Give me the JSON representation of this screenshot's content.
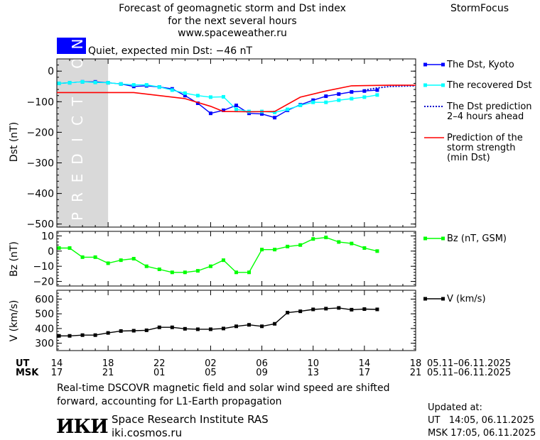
{
  "header": {
    "title_line1": "Forecast of geomagnetic storm and Dst index",
    "title_line2": "for the next several hours",
    "site": "www.spaceweather.ru",
    "brand": "StormFocus"
  },
  "status": {
    "text": "Quiet, expected min Dst: −46 nT",
    "color": "#0000ff"
  },
  "prediction_band": {
    "label": "PREDICTION",
    "start_hour": 14,
    "end_hour": 18,
    "color": "#d9d9d9"
  },
  "chart_data": [
    {
      "id": "dst",
      "type": "line",
      "ylabel": "Dst (nT)",
      "ylim": [
        -510,
        40
      ],
      "yticks": [
        0,
        -100,
        -200,
        -300,
        -400,
        -500
      ],
      "grid": false,
      "series": [
        {
          "name": "The Dst, Kyoto",
          "color": "#0000ff",
          "marker": "square",
          "x": [
            14.17,
            15,
            16,
            17,
            18,
            19,
            20,
            21,
            22,
            23,
            24,
            25,
            26,
            27,
            28,
            29,
            30,
            31,
            32,
            33,
            34,
            35,
            36,
            37,
            38,
            39
          ],
          "values": [
            -40,
            -38,
            -35,
            -35,
            -38,
            -42,
            -50,
            -48,
            -52,
            -58,
            -80,
            -105,
            -138,
            -128,
            -112,
            -138,
            -140,
            -152,
            -128,
            -110,
            -95,
            -82,
            -75,
            -68,
            -65,
            -62
          ]
        },
        {
          "name": "The recovered Dst",
          "color": "#00ffff",
          "marker": "square",
          "x": [
            14.17,
            15,
            16,
            17,
            18,
            19,
            20,
            21,
            22,
            23,
            24,
            25,
            26,
            27,
            28,
            29,
            30,
            31,
            32,
            33,
            34,
            35,
            36,
            37,
            38,
            39
          ],
          "values": [
            -40,
            -38,
            -35,
            -37,
            -38,
            -42,
            -45,
            -45,
            -52,
            -62,
            -72,
            -80,
            -85,
            -84,
            -125,
            -132,
            -132,
            -135,
            -125,
            -112,
            -102,
            -102,
            -95,
            -90,
            -85,
            -78
          ]
        },
        {
          "name": "The Dst prediction\n2–4 hours ahead",
          "color": "#0000cc",
          "style": "dotted",
          "x": [
            38,
            39,
            40,
            42
          ],
          "values": [
            -62,
            -55,
            -50,
            -48
          ]
        },
        {
          "name": "Prediction of the\nstorm strength\n(min Dst)",
          "color": "#ff0000",
          "x": [
            14,
            20,
            24,
            26,
            27,
            29,
            31,
            33,
            35,
            37,
            40,
            42
          ],
          "values": [
            -70,
            -70,
            -90,
            -115,
            -132,
            -133,
            -132,
            -85,
            -65,
            -48,
            -46,
            -46
          ]
        }
      ]
    },
    {
      "id": "bz",
      "type": "line",
      "ylabel": "Bz (nT)",
      "ylim": [
        -23,
        13
      ],
      "yticks": [
        10,
        0,
        -10,
        -20
      ],
      "grid": false,
      "series": [
        {
          "name": "Bz (nT, GSM)",
          "color": "#00ff00",
          "marker": "square",
          "x": [
            14.17,
            15,
            16,
            17,
            18,
            19,
            20,
            21,
            22,
            23,
            24,
            25,
            26,
            27,
            28,
            29,
            30,
            31,
            32,
            33,
            34,
            35,
            36,
            37,
            38,
            39
          ],
          "values": [
            2,
            2,
            -4,
            -4,
            -8,
            -6,
            -5,
            -10,
            -12,
            -14,
            -14,
            -13,
            -10,
            -6,
            -14,
            -14,
            1,
            1,
            3,
            4,
            8,
            9,
            6,
            5,
            2,
            0
          ]
        }
      ]
    },
    {
      "id": "v",
      "type": "line",
      "ylabel": "V (km/s)",
      "ylim": [
        250,
        660
      ],
      "yticks": [
        600,
        500,
        400,
        300
      ],
      "grid": false,
      "series": [
        {
          "name": "V (km/s)",
          "color": "#000000",
          "marker": "square",
          "x": [
            14.17,
            15,
            16,
            17,
            18,
            19,
            20,
            21,
            22,
            23,
            24,
            25,
            26,
            27,
            28,
            29,
            30,
            31,
            32,
            33,
            34,
            35,
            36,
            37,
            38,
            39
          ],
          "values": [
            350,
            350,
            355,
            355,
            370,
            383,
            385,
            388,
            408,
            408,
            398,
            395,
            395,
            400,
            415,
            425,
            415,
            432,
            508,
            517,
            530,
            535,
            540,
            528,
            532,
            530
          ]
        }
      ]
    }
  ],
  "time_axis": {
    "ut_label": "UT",
    "msk_label": "MSK",
    "x_range": [
      14,
      42
    ],
    "tick_hours": [
      14,
      18,
      22,
      26,
      30,
      34,
      38,
      42
    ],
    "ut_ticks": [
      "14",
      "18",
      "22",
      "02",
      "06",
      "10",
      "14",
      "18"
    ],
    "msk_ticks": [
      "17",
      "21",
      "01",
      "05",
      "09",
      "13",
      "17",
      "21"
    ],
    "ut_dates": "05.11–06.11.2025",
    "msk_dates": "05.11–06.11.2025"
  },
  "footer": {
    "note_line1": "Real-time DSCOVR magnetic field and solar wind speed are shifted",
    "note_line2": "forward, accounting for L1-Earth propagation",
    "logo_text": "ИКИ",
    "org_name": "Space Research Institute RAS",
    "org_site": "iki.cosmos.ru",
    "updated_label": "Updated at:",
    "updated_ut": "UT   14:05, 06.11.2025",
    "updated_msk": "MSK 17:05, 06.11.2025"
  }
}
